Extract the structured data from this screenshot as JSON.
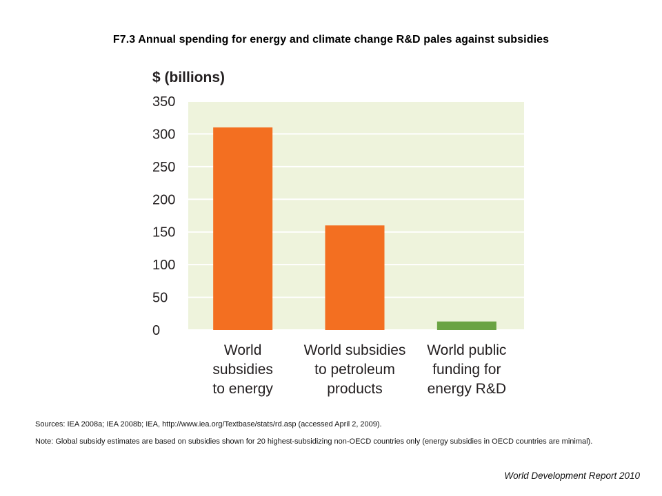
{
  "title": "F7.3 Annual spending for energy and climate change R&D pales against subsidies",
  "sources": "Sources: IEA 2008a; IEA 2008b; IEA, http://www.iea.org/Textbase/stats/rd.asp (accessed April 2, 2009).",
  "note": "Note: Global subsidy estimates are based on subsidies shown for 20 highest-subsidizing non-OECD countries only (energy subsidies in OECD countries are minimal).",
  "footer": "World Development Report 2010",
  "chart_data": {
    "type": "bar",
    "ylabel": "$ (billions)",
    "xlabel": "",
    "ylim": [
      0,
      350
    ],
    "yticks": [
      0,
      50,
      100,
      150,
      200,
      250,
      300,
      350
    ],
    "grid": true,
    "plot_background": "#eef3dc",
    "categories": [
      [
        "World",
        "subsidies",
        "to energy"
      ],
      [
        "World subsidies",
        "to petroleum",
        "products"
      ],
      [
        "World public",
        "funding for",
        "energy R&D"
      ]
    ],
    "values": [
      310,
      160,
      13
    ],
    "colors": [
      "#f36f21",
      "#f36f21",
      "#6aa343"
    ]
  }
}
